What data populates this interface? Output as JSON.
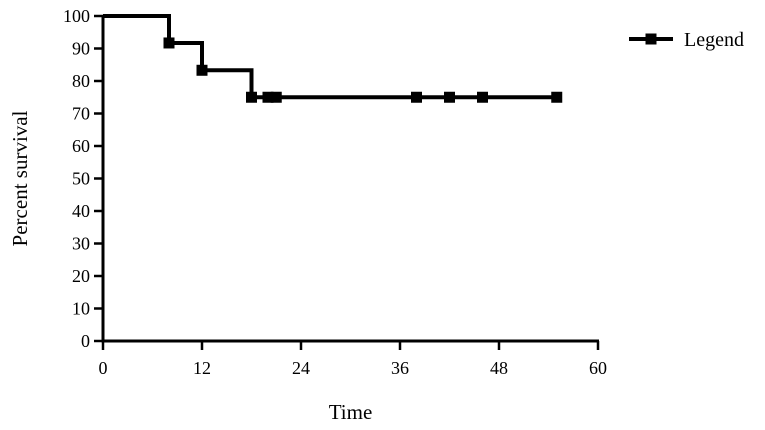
{
  "chart_data": {
    "type": "line",
    "subtype": "kaplan-meier-step",
    "title": "",
    "xlabel": "Time",
    "ylabel": "Percent survival",
    "xlim": [
      0,
      60
    ],
    "ylim": [
      0,
      100
    ],
    "x_ticks": [
      0,
      12,
      24,
      36,
      48,
      60
    ],
    "y_ticks": [
      0,
      10,
      20,
      30,
      40,
      50,
      60,
      70,
      80,
      90,
      100
    ],
    "grid": false,
    "legend_position": "top-right",
    "series": [
      {
        "name": "Legend",
        "color": "#000000",
        "step_x": [
          0,
          8,
          12,
          18,
          55
        ],
        "step_y": [
          100,
          91.7,
          83.3,
          75,
          75
        ],
        "markers": [
          {
            "x": 8,
            "y": 91.7
          },
          {
            "x": 12,
            "y": 83.3
          },
          {
            "x": 18,
            "y": 75
          },
          {
            "x": 20,
            "y": 75
          },
          {
            "x": 21,
            "y": 75
          },
          {
            "x": 38,
            "y": 75
          },
          {
            "x": 42,
            "y": 75
          },
          {
            "x": 46,
            "y": 75
          },
          {
            "x": 55,
            "y": 75
          }
        ]
      }
    ]
  }
}
